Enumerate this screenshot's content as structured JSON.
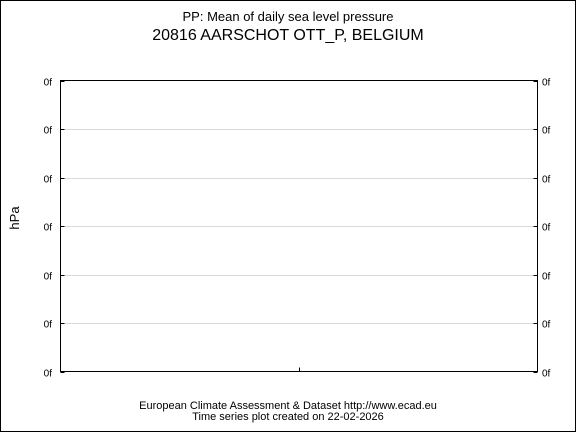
{
  "header": {
    "title": "PP: Mean of daily sea level pressure",
    "station": "20816 AARSCHOT OTT_P, BELGIUM"
  },
  "footer": {
    "line1": "European Climate Assessment & Dataset  http://www.ecad.eu",
    "line2": "Time series plot created on 22-02-2026"
  },
  "chart_data": {
    "type": "line",
    "title": "PP: Mean of daily sea level pressure",
    "subtitle": "20816 AARSCHOT OTT_P, BELGIUM",
    "xlabel": "",
    "ylabel": "hPa",
    "y_tick_labels": [
      "0f",
      "0f",
      "0f",
      "0f",
      "0f",
      "0f",
      "0f"
    ],
    "x_tick_labels": [
      ""
    ],
    "series": [],
    "grid": true
  }
}
